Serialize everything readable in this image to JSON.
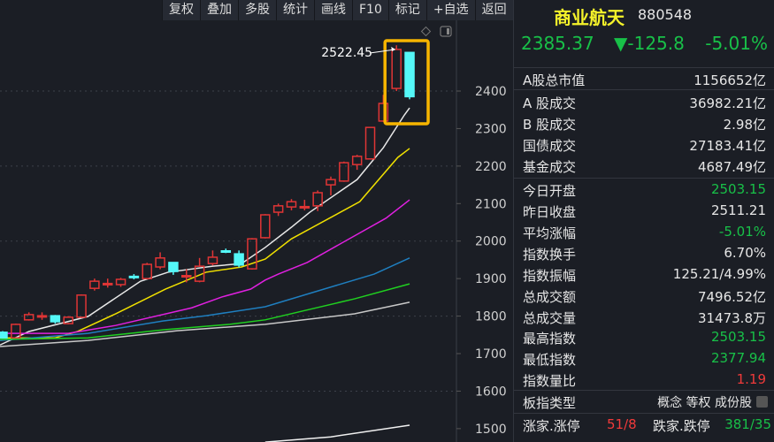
{
  "toolbar": [
    "复权",
    "叠加",
    "多股",
    "统计",
    "画线",
    "F10",
    "标记",
    "+自选",
    "返回"
  ],
  "colors": {
    "up": "#e03535",
    "down": "#54f8f8",
    "background": "#1b1e25",
    "highlight": "#f7b500",
    "gain": "#f03a3a",
    "loss": "#18c048"
  },
  "chart_data": {
    "type": "candlestick",
    "ylim": [
      1470,
      2560
    ],
    "yticks": [
      1500,
      1600,
      1700,
      1800,
      1900,
      2000,
      2100,
      2200,
      2300,
      2400
    ],
    "grid": true,
    "annotation": "2522.45",
    "highlight_last_candles": 2,
    "candles": [
      [
        1757,
        1742,
        1760,
        1740
      ],
      [
        1742,
        1778,
        1780,
        1740
      ],
      [
        1790,
        1804,
        1810,
        1788
      ],
      [
        1800,
        1801,
        1810,
        1790
      ],
      [
        1801,
        1785,
        1803,
        1780
      ],
      [
        1780,
        1797,
        1800,
        1778
      ],
      [
        1797,
        1856,
        1858,
        1795
      ],
      [
        1874,
        1893,
        1900,
        1868
      ],
      [
        1886,
        1887,
        1900,
        1876
      ],
      [
        1884,
        1898,
        1902,
        1878
      ],
      [
        1906,
        1905,
        1912,
        1898
      ],
      [
        1900,
        1938,
        1942,
        1898
      ],
      [
        1931,
        1955,
        1970,
        1925
      ],
      [
        1943,
        1919,
        1943,
        1910
      ],
      [
        1907,
        1908,
        1925,
        1890
      ],
      [
        1893,
        1933,
        1955,
        1890
      ],
      [
        1940,
        1957,
        1975,
        1935
      ],
      [
        1974,
        1973,
        1980,
        1968
      ],
      [
        1966,
        1936,
        1975,
        1930
      ],
      [
        1926,
        2006,
        2008,
        1924
      ],
      [
        2009,
        2070,
        2072,
        2007
      ],
      [
        2077,
        2094,
        2100,
        2067
      ],
      [
        2091,
        2105,
        2112,
        2082
      ],
      [
        2091,
        2092,
        2110,
        2082
      ],
      [
        2094,
        2129,
        2135,
        2080
      ],
      [
        2150,
        2164,
        2172,
        2122
      ],
      [
        2160,
        2209,
        2212,
        2158
      ],
      [
        2204,
        2226,
        2230,
        2190
      ],
      [
        2219,
        2303,
        2304,
        2218
      ],
      [
        2320,
        2367,
        2390,
        2318
      ],
      [
        2407,
        2511,
        2522,
        2400
      ],
      [
        2503,
        2385,
        2503,
        2378
      ]
    ],
    "moving_averages": [
      {
        "color": "#e8e8e8",
        "points": [
          [
            -0.2,
            1723
          ],
          [
            2,
            1759
          ],
          [
            6.5,
            1799
          ],
          [
            10.5,
            1893
          ],
          [
            12.6,
            1917
          ],
          [
            16,
            1933
          ],
          [
            18.2,
            1940
          ],
          [
            20,
            1983
          ],
          [
            22,
            2037
          ],
          [
            23.4,
            2077
          ],
          [
            27,
            2164
          ],
          [
            29,
            2249
          ],
          [
            30.6,
            2336
          ],
          [
            31,
            2355
          ]
        ]
      },
      {
        "color": "#f0e000",
        "points": [
          [
            -0.2,
            1742
          ],
          [
            4,
            1742
          ],
          [
            5.7,
            1759
          ],
          [
            8.6,
            1806
          ],
          [
            12.4,
            1872
          ],
          [
            15.5,
            1917
          ],
          [
            18.2,
            1931
          ],
          [
            20,
            1952
          ],
          [
            22,
            2006
          ],
          [
            27.2,
            2105
          ],
          [
            30.1,
            2223
          ],
          [
            31,
            2247
          ]
        ]
      },
      {
        "color": "#e020e0",
        "points": [
          [
            -0.2,
            1754
          ],
          [
            5,
            1754
          ],
          [
            8.6,
            1775
          ],
          [
            14.4,
            1822
          ],
          [
            16.7,
            1851
          ],
          [
            18.9,
            1872
          ],
          [
            20,
            1896
          ],
          [
            21,
            1912
          ],
          [
            23.2,
            1943
          ],
          [
            29.2,
            2061
          ],
          [
            31,
            2110
          ]
        ]
      },
      {
        "color": "#1f7fc0",
        "points": [
          [
            -0.2,
            1735
          ],
          [
            6.5,
            1754
          ],
          [
            12.2,
            1787
          ],
          [
            15.5,
            1801
          ],
          [
            20,
            1825
          ],
          [
            28.3,
            1912
          ],
          [
            31,
            1955
          ]
        ]
      },
      {
        "color": "#20d020",
        "points": [
          [
            -0.2,
            1738
          ],
          [
            6.5,
            1742
          ],
          [
            12.4,
            1764
          ],
          [
            17.3,
            1778
          ],
          [
            20,
            1790
          ],
          [
            23.4,
            1818
          ],
          [
            26.8,
            1846
          ],
          [
            31,
            1886
          ]
        ]
      },
      {
        "color": "#c8c8c8",
        "points": [
          [
            -0.2,
            1719
          ],
          [
            6.5,
            1735
          ],
          [
            13.3,
            1761
          ],
          [
            20,
            1778
          ],
          [
            26.8,
            1806
          ],
          [
            31,
            1837
          ]
        ]
      },
      {
        "color": "#f0f0f0",
        "points": [
          [
            20,
            1464
          ],
          [
            25,
            1478
          ],
          [
            31,
            1509
          ]
        ]
      }
    ]
  },
  "quote": {
    "name": "商业航天",
    "code": "880548",
    "price": "2385.37",
    "change": "▼-125.8",
    "pct": "-5.01%"
  },
  "stats": [
    {
      "k": "A股总市值",
      "v": "1156652亿",
      "c": ""
    },
    {
      "k": "A 股成交",
      "v": "36982.21亿",
      "c": ""
    },
    {
      "k": "B 股成交",
      "v": "2.98亿",
      "c": ""
    },
    {
      "k": "国债成交",
      "v": "27183.41亿",
      "c": ""
    },
    {
      "k": "基金成交",
      "v": "4687.49亿",
      "c": ""
    },
    {
      "k": "今日开盘",
      "v": "2503.15",
      "c": "green"
    },
    {
      "k": "昨日收盘",
      "v": "2511.21",
      "c": ""
    },
    {
      "k": "平均涨幅",
      "v": "-5.01%",
      "c": "green"
    },
    {
      "k": "指数换手",
      "v": "6.70%",
      "c": ""
    },
    {
      "k": "指数振幅",
      "v": "125.21/4.99%",
      "c": ""
    },
    {
      "k": "总成交额",
      "v": "7496.52亿",
      "c": ""
    },
    {
      "k": "总成交量",
      "v": "31473.8万",
      "c": ""
    },
    {
      "k": "最高指数",
      "v": "2503.15",
      "c": "green"
    },
    {
      "k": "最低指数",
      "v": "2377.94",
      "c": "green"
    },
    {
      "k": "指数量比",
      "v": "1.19",
      "c": "red"
    },
    {
      "k": "板指类型",
      "v": "概念 等权 成份股",
      "c": ""
    }
  ],
  "breadth": {
    "up_label": "涨家.涨停",
    "up_value": "51/8",
    "down_label": "跌家.跌停",
    "down_value": "381/35"
  }
}
